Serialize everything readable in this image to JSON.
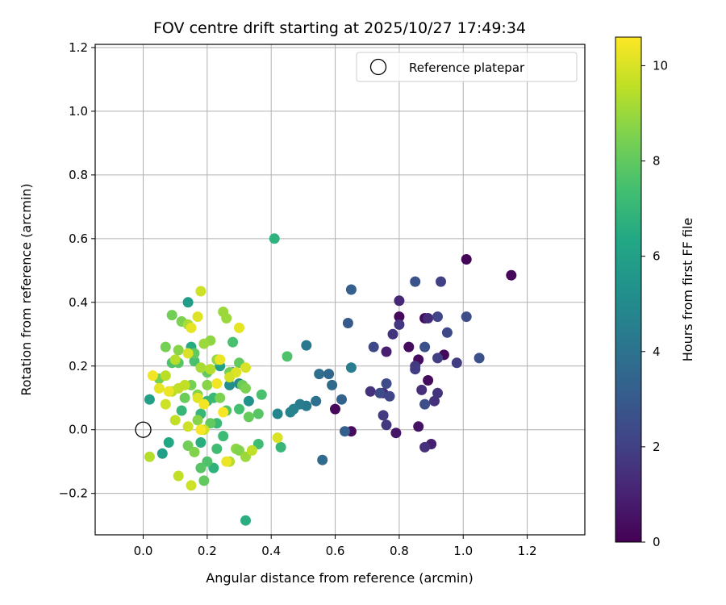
{
  "chart_data": {
    "type": "scatter",
    "title": "FOV centre drift starting at 2025/10/27 17:49:34",
    "xlabel": "Angular distance from reference (arcmin)",
    "ylabel": "Rotation from reference (arcmin)",
    "xlim": [
      -0.15,
      1.38
    ],
    "ylim": [
      -0.33,
      1.21
    ],
    "xticks": [
      0.0,
      0.2,
      0.4,
      0.6,
      0.8,
      1.0,
      1.2
    ],
    "xtick_labels": [
      "0.0",
      "0.2",
      "0.4",
      "0.6",
      "0.8",
      "1.0",
      "1.2"
    ],
    "yticks": [
      -0.2,
      0.0,
      0.2,
      0.4,
      0.6,
      0.8,
      1.0,
      1.2
    ],
    "ytick_labels": [
      "−0.2",
      "0.0",
      "0.2",
      "0.4",
      "0.6",
      "0.8",
      "1.0",
      "1.2"
    ],
    "grid": true,
    "legend": {
      "position": "top-right",
      "label": "Reference platepar"
    },
    "reference_point": {
      "x": 0.0,
      "y": 0.0
    },
    "colorbar": {
      "label": "Hours from first FF file",
      "colormap": "viridis",
      "range": [
        0,
        10.6
      ],
      "ticks": [
        0,
        2,
        4,
        6,
        8,
        10
      ],
      "tick_labels": [
        "0",
        "2",
        "4",
        "6",
        "8",
        "10"
      ]
    },
    "points": [
      [
        1.01,
        0.535,
        0.1
      ],
      [
        1.15,
        0.485,
        0.2
      ],
      [
        0.8,
        0.355,
        0.2
      ],
      [
        0.83,
        0.26,
        0.3
      ],
      [
        0.86,
        0.22,
        0.3
      ],
      [
        0.89,
        0.155,
        0.3
      ],
      [
        0.94,
        0.235,
        0.2
      ],
      [
        0.88,
        0.35,
        0.3
      ],
      [
        0.6,
        0.065,
        0.2
      ],
      [
        0.65,
        -0.005,
        0.3
      ],
      [
        0.86,
        0.01,
        0.5
      ],
      [
        0.79,
        -0.01,
        0.6
      ],
      [
        0.9,
        -0.045,
        0.9
      ],
      [
        0.76,
        0.245,
        0.9
      ],
      [
        0.8,
        0.405,
        1.2
      ],
      [
        0.89,
        0.35,
        1.3
      ],
      [
        0.87,
        0.125,
        1.4
      ],
      [
        0.75,
        0.115,
        1.3
      ],
      [
        0.71,
        0.12,
        1.5
      ],
      [
        0.91,
        0.09,
        1.5
      ],
      [
        0.92,
        0.115,
        1.6
      ],
      [
        0.88,
        -0.055,
        1.5
      ],
      [
        0.76,
        0.015,
        1.7
      ],
      [
        0.75,
        0.045,
        1.8
      ],
      [
        0.78,
        0.3,
        1.6
      ],
      [
        0.8,
        0.33,
        1.7
      ],
      [
        0.85,
        0.2,
        1.8
      ],
      [
        0.85,
        0.19,
        1.9
      ],
      [
        0.92,
        0.225,
        2.0
      ],
      [
        0.98,
        0.21,
        1.9
      ],
      [
        0.93,
        0.465,
        2.0
      ],
      [
        0.92,
        0.355,
        2.2
      ],
      [
        0.95,
        0.305,
        2.3
      ],
      [
        0.72,
        0.26,
        2.3
      ],
      [
        0.76,
        0.145,
        2.4
      ],
      [
        0.88,
        0.08,
        2.5
      ],
      [
        0.88,
        0.26,
        2.6
      ],
      [
        1.01,
        0.355,
        2.5
      ],
      [
        1.05,
        0.225,
        2.6
      ],
      [
        0.85,
        0.465,
        2.7
      ],
      [
        0.74,
        0.115,
        2.4
      ],
      [
        0.77,
        0.105,
        2.2
      ],
      [
        0.64,
        0.335,
        3.0
      ],
      [
        0.65,
        0.44,
        3.2
      ],
      [
        0.63,
        -0.005,
        3.2
      ],
      [
        0.62,
        0.095,
        3.3
      ],
      [
        0.58,
        0.175,
        3.5
      ],
      [
        0.59,
        0.14,
        3.6
      ],
      [
        0.56,
        -0.095,
        3.7
      ],
      [
        0.55,
        0.175,
        3.8
      ],
      [
        0.54,
        0.09,
        3.9
      ],
      [
        0.51,
        0.265,
        4.2
      ],
      [
        0.51,
        0.075,
        4.3
      ],
      [
        0.49,
        0.08,
        4.4
      ],
      [
        0.47,
        0.065,
        4.6
      ],
      [
        0.46,
        0.055,
        4.7
      ],
      [
        0.42,
        0.05,
        4.8
      ],
      [
        0.65,
        0.195,
        4.5
      ],
      [
        0.28,
        0.18,
        4.9
      ],
      [
        0.3,
        0.145,
        5.0
      ],
      [
        0.27,
        0.14,
        5.2
      ],
      [
        0.33,
        0.09,
        5.3
      ],
      [
        0.14,
        0.4,
        5.8
      ],
      [
        0.24,
        0.2,
        6.0
      ],
      [
        0.02,
        0.095,
        6.0
      ],
      [
        0.06,
        -0.075,
        6.0
      ],
      [
        0.08,
        -0.04,
        6.3
      ],
      [
        0.15,
        0.26,
        6.5
      ],
      [
        0.18,
        -0.04,
        6.6
      ],
      [
        0.22,
        -0.12,
        6.8
      ],
      [
        0.12,
        0.06,
        7.0
      ],
      [
        0.18,
        0.05,
        7.0
      ],
      [
        0.2,
        0.09,
        7.0
      ],
      [
        0.22,
        0.1,
        7.1
      ],
      [
        0.23,
        0.02,
        7.1
      ],
      [
        0.25,
        -0.02,
        7.2
      ],
      [
        0.23,
        -0.06,
        7.3
      ],
      [
        0.32,
        -0.285,
        6.6
      ],
      [
        0.36,
        -0.045,
        7.3
      ],
      [
        0.3,
        0.065,
        7.4
      ],
      [
        0.37,
        0.11,
        7.5
      ],
      [
        0.28,
        0.275,
        7.5
      ],
      [
        0.16,
        0.215,
        7.5
      ],
      [
        0.45,
        0.23,
        7.6
      ],
      [
        0.41,
        0.6,
        6.8
      ],
      [
        0.43,
        -0.055,
        7.0
      ],
      [
        0.2,
        -0.1,
        7.6
      ],
      [
        0.19,
        -0.16,
        8.0
      ],
      [
        0.18,
        -0.12,
        7.8
      ],
      [
        0.26,
        0.06,
        7.7
      ],
      [
        0.09,
        0.21,
        7.6
      ],
      [
        0.11,
        0.21,
        7.8
      ],
      [
        0.16,
        0.24,
        8.0
      ],
      [
        0.2,
        0.18,
        8.0
      ],
      [
        0.27,
        0.18,
        8.3
      ],
      [
        0.3,
        0.21,
        8.0
      ],
      [
        0.31,
        0.14,
        8.2
      ],
      [
        0.32,
        0.13,
        8.5
      ],
      [
        0.36,
        0.05,
        7.8
      ],
      [
        0.33,
        0.04,
        8.1
      ],
      [
        0.09,
        0.36,
        8.3
      ],
      [
        0.12,
        0.34,
        8.5
      ],
      [
        0.13,
        0.1,
        8.2
      ],
      [
        0.15,
        0.14,
        8.4
      ],
      [
        0.17,
        0.11,
        8.6
      ],
      [
        0.21,
        0.02,
        8.0
      ],
      [
        0.14,
        -0.05,
        8.3
      ],
      [
        0.16,
        -0.07,
        8.6
      ],
      [
        0.07,
        0.26,
        8.4
      ],
      [
        0.11,
        0.25,
        8.7
      ],
      [
        0.05,
        0.16,
        8.4
      ],
      [
        0.17,
        0.03,
        8.7
      ],
      [
        0.2,
        0.14,
        8.7
      ],
      [
        0.24,
        0.1,
        8.5
      ],
      [
        0.23,
        0.22,
        8.9
      ],
      [
        0.25,
        0.37,
        9.0
      ],
      [
        0.21,
        0.28,
        8.8
      ],
      [
        0.26,
        0.35,
        9.0
      ],
      [
        0.29,
        -0.06,
        8.8
      ],
      [
        0.3,
        -0.065,
        8.6
      ],
      [
        0.32,
        -0.085,
        9.0
      ],
      [
        0.27,
        -0.1,
        9.4
      ],
      [
        0.14,
        0.33,
        9.2
      ],
      [
        0.19,
        0.27,
        9.0
      ],
      [
        0.18,
        0.195,
        9.2
      ],
      [
        0.21,
        0.19,
        9.4
      ],
      [
        0.1,
        0.22,
        9.4
      ],
      [
        0.07,
        0.17,
        9.5
      ],
      [
        0.09,
        0.12,
        9.4
      ],
      [
        0.11,
        0.13,
        9.6
      ],
      [
        0.13,
        0.14,
        9.6
      ],
      [
        0.07,
        0.08,
        9.8
      ],
      [
        0.1,
        0.03,
        9.6
      ],
      [
        0.14,
        0.01,
        9.8
      ],
      [
        0.19,
        0.0,
        9.8
      ],
      [
        0.02,
        -0.085,
        9.4
      ],
      [
        0.11,
        -0.145,
        9.6
      ],
      [
        0.15,
        -0.175,
        9.8
      ],
      [
        0.34,
        -0.065,
        9.6
      ],
      [
        0.42,
        -0.025,
        10.0
      ],
      [
        0.18,
        0.435,
        9.8
      ],
      [
        0.14,
        0.24,
        10.0
      ],
      [
        0.15,
        0.32,
        10.2
      ],
      [
        0.17,
        0.355,
        10.1
      ],
      [
        0.3,
        0.32,
        10.2
      ],
      [
        0.32,
        0.195,
        10.0
      ],
      [
        0.24,
        0.22,
        10.3
      ],
      [
        0.23,
        0.145,
        10.4
      ],
      [
        0.05,
        0.13,
        10.2
      ],
      [
        0.03,
        0.17,
        10.4
      ],
      [
        0.08,
        0.12,
        10.3
      ],
      [
        0.17,
        0.1,
        10.1
      ],
      [
        0.19,
        0.08,
        10.4
      ],
      [
        0.25,
        0.055,
        10.5
      ],
      [
        0.18,
        0.0,
        10.5
      ],
      [
        0.26,
        -0.1,
        10.3
      ],
      [
        0.29,
        0.18,
        10.1
      ],
      [
        0.27,
        0.165,
        9.9
      ]
    ]
  }
}
